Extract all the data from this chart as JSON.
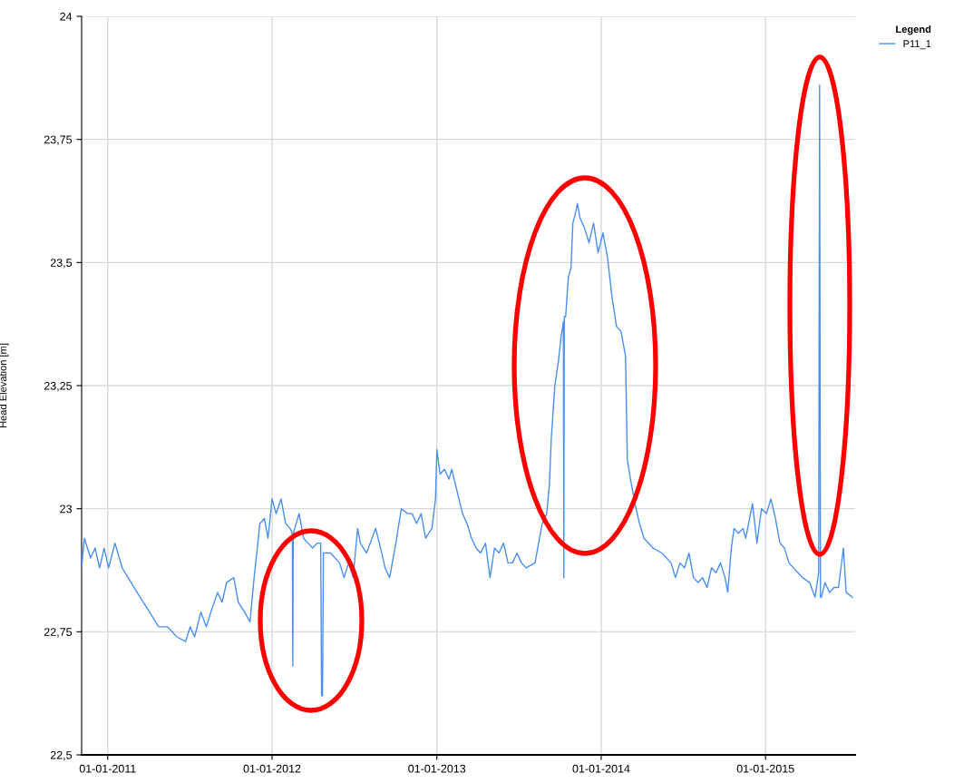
{
  "chart_data": {
    "type": "line",
    "ylabel": "Head Elevation [m]",
    "legend_title": "Legend",
    "legend": "top right",
    "grid": true,
    "line_style": "solid",
    "marker": "none",
    "xlim": [
      "2010-11-04",
      "2015-07-19"
    ],
    "xticks": [
      {
        "value": "2011-01-01",
        "label": "01-01-2011"
      },
      {
        "value": "2012-01-01",
        "label": "01-01-2012"
      },
      {
        "value": "2013-01-01",
        "label": "01-01-2013"
      },
      {
        "value": "2014-01-01",
        "label": "01-01-2014"
      },
      {
        "value": "2015-01-01",
        "label": "01-01-2015"
      }
    ],
    "ylim": [
      22.5,
      24
    ],
    "yticks": [
      {
        "value": 22.5,
        "label": "22,5"
      },
      {
        "value": 22.75,
        "label": "22,75"
      },
      23,
      {
        "value": 23.25,
        "label": "23,25"
      },
      {
        "value": 23.5,
        "label": "23,5"
      },
      {
        "value": 23.75,
        "label": "23,75"
      },
      24
    ],
    "series": [
      {
        "name": "P11_1",
        "color": "#4a90f0",
        "x": [
          "2010-11-04",
          "2010-11-10",
          "2010-11-24",
          "2010-12-04",
          "2010-12-14",
          "2010-12-24",
          "2011-01-03",
          "2011-01-17",
          "2011-02-02",
          "2011-02-22",
          "2011-03-14",
          "2011-04-04",
          "2011-04-24",
          "2011-05-14",
          "2011-06-03",
          "2011-06-23",
          "2011-07-03",
          "2011-07-13",
          "2011-07-27",
          "2011-08-08",
          "2011-08-18",
          "2011-09-02",
          "2011-09-12",
          "2011-09-22",
          "2011-10-08",
          "2011-10-18",
          "2011-11-01",
          "2011-11-13",
          "2011-11-21",
          "2011-12-05",
          "2011-12-15",
          "2011-12-23",
          "2012-01-01",
          "2012-01-10",
          "2012-01-21",
          "2012-01-31",
          "2012-02-10",
          "2012-02-15",
          "2012-02-16",
          "2012-02-17",
          "2012-03-01",
          "2012-03-11",
          "2012-03-21",
          "2012-03-31",
          "2012-04-10",
          "2012-04-18",
          "2012-04-20",
          "2012-04-22",
          "2012-04-24",
          "2012-05-10",
          "2012-05-30",
          "2012-06-09",
          "2012-06-19",
          "2012-06-29",
          "2012-07-09",
          "2012-07-15",
          "2012-07-29",
          "2012-08-18",
          "2012-08-29",
          "2012-09-08",
          "2012-09-18",
          "2012-10-02",
          "2012-10-14",
          "2012-10-28",
          "2012-11-07",
          "2012-11-17",
          "2012-11-27",
          "2012-12-07",
          "2012-12-21",
          "2012-12-29",
          "2013-01-01",
          "2013-01-08",
          "2013-01-18",
          "2013-01-28",
          "2013-02-03",
          "2013-02-11",
          "2013-02-27",
          "2013-03-09",
          "2013-03-19",
          "2013-03-29",
          "2013-04-08",
          "2013-04-19",
          "2013-04-29",
          "2013-05-09",
          "2013-05-19",
          "2013-05-29",
          "2013-06-08",
          "2013-06-18",
          "2013-06-28",
          "2013-07-08",
          "2013-07-18",
          "2013-08-07",
          "2013-08-23",
          "2013-09-02",
          "2013-09-08",
          "2013-09-12",
          "2013-09-20",
          "2013-09-28",
          "2013-10-04",
          "2013-10-09",
          "2013-10-10",
          "2013-10-11",
          "2013-10-14",
          "2013-10-20",
          "2013-10-26",
          "2013-10-30",
          "2013-11-05",
          "2013-11-09",
          "2013-11-15",
          "2013-11-25",
          "2013-12-05",
          "2013-12-15",
          "2013-12-25",
          "2014-01-05",
          "2014-01-15",
          "2014-01-25",
          "2014-02-04",
          "2014-02-14",
          "2014-02-24",
          "2014-02-28",
          "2014-03-07",
          "2014-03-17",
          "2014-03-27",
          "2014-04-06",
          "2014-04-26",
          "2014-05-16",
          "2014-06-05",
          "2014-06-15",
          "2014-06-25",
          "2014-07-05",
          "2014-07-15",
          "2014-07-25",
          "2014-08-04",
          "2014-08-14",
          "2014-08-24",
          "2014-09-03",
          "2014-09-13",
          "2014-09-23",
          "2014-10-03",
          "2014-10-09",
          "2014-10-17",
          "2014-10-23",
          "2014-11-02",
          "2014-11-12",
          "2014-11-18",
          "2014-12-03",
          "2014-12-13",
          "2014-12-23",
          "2015-01-03",
          "2015-01-13",
          "2015-01-23",
          "2015-02-02",
          "2015-02-12",
          "2015-02-22",
          "2015-03-14",
          "2015-03-24",
          "2015-04-09",
          "2015-04-17",
          "2015-04-21",
          "2015-04-29",
          "2015-05-01",
          "2015-05-03",
          "2015-05-05",
          "2015-05-13",
          "2015-05-23",
          "2015-06-02",
          "2015-06-12",
          "2015-06-23",
          "2015-06-29",
          "2015-07-13"
        ],
        "values": [
          22.88,
          22.94,
          22.9,
          22.92,
          22.88,
          22.92,
          22.88,
          22.93,
          22.88,
          22.85,
          22.82,
          22.79,
          22.76,
          22.76,
          22.74,
          22.73,
          22.76,
          22.74,
          22.79,
          22.76,
          22.79,
          22.83,
          22.81,
          22.85,
          22.86,
          22.81,
          22.79,
          22.77,
          22.85,
          22.97,
          22.98,
          22.94,
          23.02,
          22.99,
          23.02,
          22.97,
          22.96,
          22.95,
          22.68,
          22.95,
          22.99,
          22.94,
          22.93,
          22.92,
          22.93,
          22.93,
          22.62,
          22.62,
          22.91,
          22.91,
          22.89,
          22.86,
          22.89,
          22.86,
          22.96,
          22.93,
          22.91,
          22.96,
          22.92,
          22.88,
          22.86,
          22.93,
          23.0,
          22.99,
          22.99,
          22.97,
          22.99,
          22.94,
          22.96,
          23.02,
          23.12,
          23.07,
          23.08,
          23.06,
          23.08,
          23.05,
          22.99,
          22.97,
          22.94,
          22.92,
          22.91,
          22.93,
          22.86,
          22.92,
          22.91,
          22.93,
          22.89,
          22.89,
          22.91,
          22.89,
          22.88,
          22.89,
          22.97,
          22.99,
          23.05,
          23.14,
          23.25,
          23.3,
          23.35,
          23.38,
          22.86,
          23.39,
          23.39,
          23.47,
          23.49,
          23.58,
          23.6,
          23.62,
          23.59,
          23.57,
          23.54,
          23.58,
          23.52,
          23.56,
          23.51,
          23.43,
          23.37,
          23.36,
          23.31,
          23.1,
          23.06,
          23.01,
          22.97,
          22.94,
          22.92,
          22.91,
          22.89,
          22.86,
          22.89,
          22.88,
          22.91,
          22.86,
          22.85,
          22.86,
          22.84,
          22.88,
          22.87,
          22.89,
          22.86,
          22.83,
          22.92,
          22.96,
          22.95,
          22.96,
          22.94,
          23.01,
          22.93,
          23.0,
          22.99,
          23.02,
          22.98,
          22.93,
          22.92,
          22.89,
          22.87,
          22.86,
          22.85,
          22.83,
          22.82,
          22.87,
          23.86,
          22.82,
          22.82,
          22.85,
          22.83,
          22.84,
          22.84,
          22.92,
          22.83,
          22.82
        ]
      }
    ]
  }
}
